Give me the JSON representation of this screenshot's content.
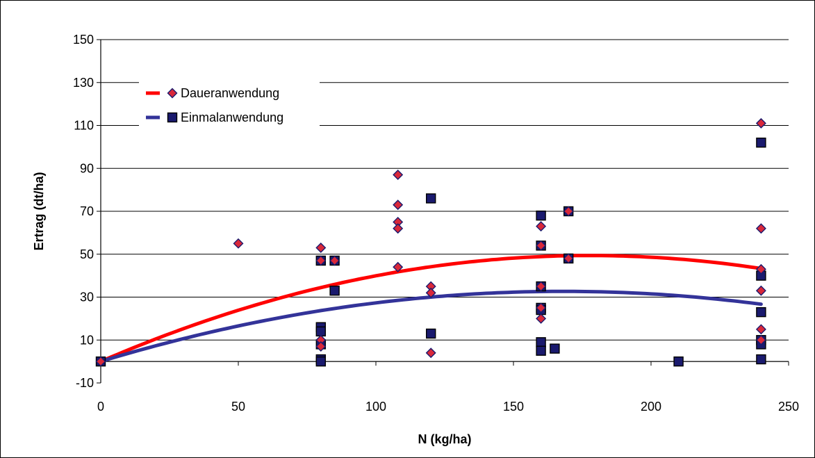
{
  "chart_data": {
    "type": "scatter",
    "title": "",
    "xlabel": "N (kg/ha)",
    "ylabel": "Ertrag (dt/ha)",
    "xlim": [
      0,
      250
    ],
    "ylim": [
      -10,
      150
    ],
    "x_ticks": [
      0,
      50,
      100,
      150,
      200,
      250
    ],
    "y_ticks": [
      -10,
      10,
      30,
      50,
      70,
      90,
      110,
      130,
      150
    ],
    "grid": "horizontal",
    "legend_position": "top-left",
    "series": [
      {
        "name": "Daueranwendung",
        "marker": "diamond",
        "marker_fill": "#d9283a",
        "marker_edge": "#1a1a6e",
        "trend_color": "#ff0000",
        "trend_poly": [
          0,
          0.5556,
          -0.001563
        ],
        "trend_range": [
          0,
          240
        ],
        "points": [
          [
            0,
            0
          ],
          [
            50,
            55
          ],
          [
            80,
            53
          ],
          [
            80,
            47
          ],
          [
            80,
            10
          ],
          [
            80,
            7
          ],
          [
            85,
            47
          ],
          [
            108,
            87
          ],
          [
            108,
            73
          ],
          [
            108,
            65
          ],
          [
            108,
            62
          ],
          [
            108,
            44
          ],
          [
            120,
            35
          ],
          [
            120,
            32
          ],
          [
            120,
            4
          ],
          [
            160,
            63
          ],
          [
            160,
            54
          ],
          [
            160,
            35
          ],
          [
            160,
            25
          ],
          [
            160,
            20
          ],
          [
            170,
            70
          ],
          [
            170,
            48
          ],
          [
            240,
            111
          ],
          [
            240,
            62
          ],
          [
            240,
            43
          ],
          [
            240,
            33
          ],
          [
            240,
            15
          ],
          [
            240,
            10
          ]
        ]
      },
      {
        "name": "Einmalanwendung",
        "marker": "square",
        "marker_fill": "#1a1a6e",
        "marker_edge": "#000000",
        "trend_color": "#333399",
        "trend_poly": [
          0,
          0.3889,
          -0.001157
        ],
        "trend_range": [
          0,
          240
        ],
        "points": [
          [
            0,
            0
          ],
          [
            80,
            47
          ],
          [
            80,
            16
          ],
          [
            80,
            14
          ],
          [
            80,
            8
          ],
          [
            80,
            1
          ],
          [
            80,
            0
          ],
          [
            85,
            47
          ],
          [
            85,
            33
          ],
          [
            120,
            76
          ],
          [
            120,
            13
          ],
          [
            160,
            68
          ],
          [
            160,
            54
          ],
          [
            160,
            35
          ],
          [
            160,
            25
          ],
          [
            160,
            24
          ],
          [
            160,
            9
          ],
          [
            160,
            5
          ],
          [
            165,
            6
          ],
          [
            170,
            70
          ],
          [
            170,
            48
          ],
          [
            210,
            0
          ],
          [
            240,
            102
          ],
          [
            240,
            40
          ],
          [
            240,
            23
          ],
          [
            240,
            10
          ],
          [
            240,
            8
          ],
          [
            240,
            1
          ]
        ]
      }
    ]
  }
}
